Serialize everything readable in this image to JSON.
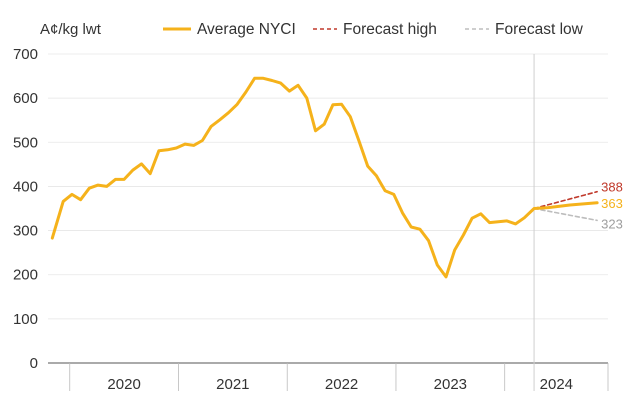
{
  "chart_data": {
    "type": "line",
    "title": "",
    "xlabel": "",
    "ylabel": "A¢/kg lwt",
    "ylim": [
      0,
      700
    ],
    "yticks": [
      0,
      100,
      200,
      300,
      400,
      500,
      600,
      700
    ],
    "grid": true,
    "legend_position": "top",
    "x_categories": [
      "2020",
      "2021",
      "2022",
      "2023",
      "2024"
    ],
    "x_range": [
      2019.8,
      2024.95
    ],
    "legend": [
      {
        "name": "Average NYCI",
        "style": "solid",
        "color": "#f5b21b"
      },
      {
        "name": "Forecast high",
        "style": "dashed",
        "color": "#c0392b"
      },
      {
        "name": "Forecast low",
        "style": "dashed",
        "color": "#bdbdbd"
      }
    ],
    "forecast_marker_x": 2024.0,
    "series": [
      {
        "name": "Average NYCI",
        "color": "#f5b21b",
        "points": [
          [
            2019.84,
            283
          ],
          [
            2019.94,
            366
          ],
          [
            2020.02,
            382
          ],
          [
            2020.1,
            370
          ],
          [
            2020.18,
            396
          ],
          [
            2020.26,
            403
          ],
          [
            2020.34,
            400
          ],
          [
            2020.42,
            416
          ],
          [
            2020.5,
            416
          ],
          [
            2020.58,
            437
          ],
          [
            2020.66,
            451
          ],
          [
            2020.74,
            429
          ],
          [
            2020.82,
            481
          ],
          [
            2020.9,
            483
          ],
          [
            2020.98,
            487
          ],
          [
            2021.06,
            496
          ],
          [
            2021.14,
            493
          ],
          [
            2021.22,
            504
          ],
          [
            2021.3,
            536
          ],
          [
            2021.38,
            551
          ],
          [
            2021.46,
            567
          ],
          [
            2021.54,
            586
          ],
          [
            2021.62,
            614
          ],
          [
            2021.7,
            645
          ],
          [
            2021.78,
            645
          ],
          [
            2021.86,
            640
          ],
          [
            2021.94,
            634
          ],
          [
            2022.02,
            616
          ],
          [
            2022.1,
            629
          ],
          [
            2022.18,
            600
          ],
          [
            2022.26,
            526
          ],
          [
            2022.34,
            541
          ],
          [
            2022.42,
            585
          ],
          [
            2022.5,
            586
          ],
          [
            2022.58,
            558
          ],
          [
            2022.66,
            503
          ],
          [
            2022.74,
            446
          ],
          [
            2022.82,
            424
          ],
          [
            2022.9,
            390
          ],
          [
            2022.98,
            382
          ],
          [
            2023.06,
            340
          ],
          [
            2023.14,
            308
          ],
          [
            2023.22,
            303
          ],
          [
            2023.3,
            277
          ],
          [
            2023.38,
            222
          ],
          [
            2023.46,
            195
          ],
          [
            2023.54,
            256
          ],
          [
            2023.62,
            290
          ],
          [
            2023.7,
            328
          ],
          [
            2023.78,
            338
          ],
          [
            2023.86,
            318
          ],
          [
            2023.94,
            320
          ],
          [
            2024.02,
            322
          ],
          [
            2024.1,
            315
          ],
          [
            2024.18,
            329
          ],
          [
            2024.27,
            350
          ],
          [
            2024.4,
            352
          ],
          [
            2024.6,
            358
          ],
          [
            2024.85,
            363
          ]
        ]
      },
      {
        "name": "Forecast high",
        "color": "#c0392b",
        "dashed": true,
        "points": [
          [
            2024.27,
            350
          ],
          [
            2024.85,
            388
          ]
        ]
      },
      {
        "name": "Forecast low",
        "color": "#bdbdbd",
        "dashed": true,
        "points": [
          [
            2024.27,
            350
          ],
          [
            2024.85,
            323
          ]
        ]
      }
    ],
    "end_labels": [
      {
        "series": "Forecast high",
        "text": "388",
        "color": "#c0392b"
      },
      {
        "series": "Average NYCI",
        "text": "363",
        "color": "#f5b21b"
      },
      {
        "series": "Forecast low",
        "text": "323",
        "color": "#9e9e9e"
      }
    ]
  }
}
